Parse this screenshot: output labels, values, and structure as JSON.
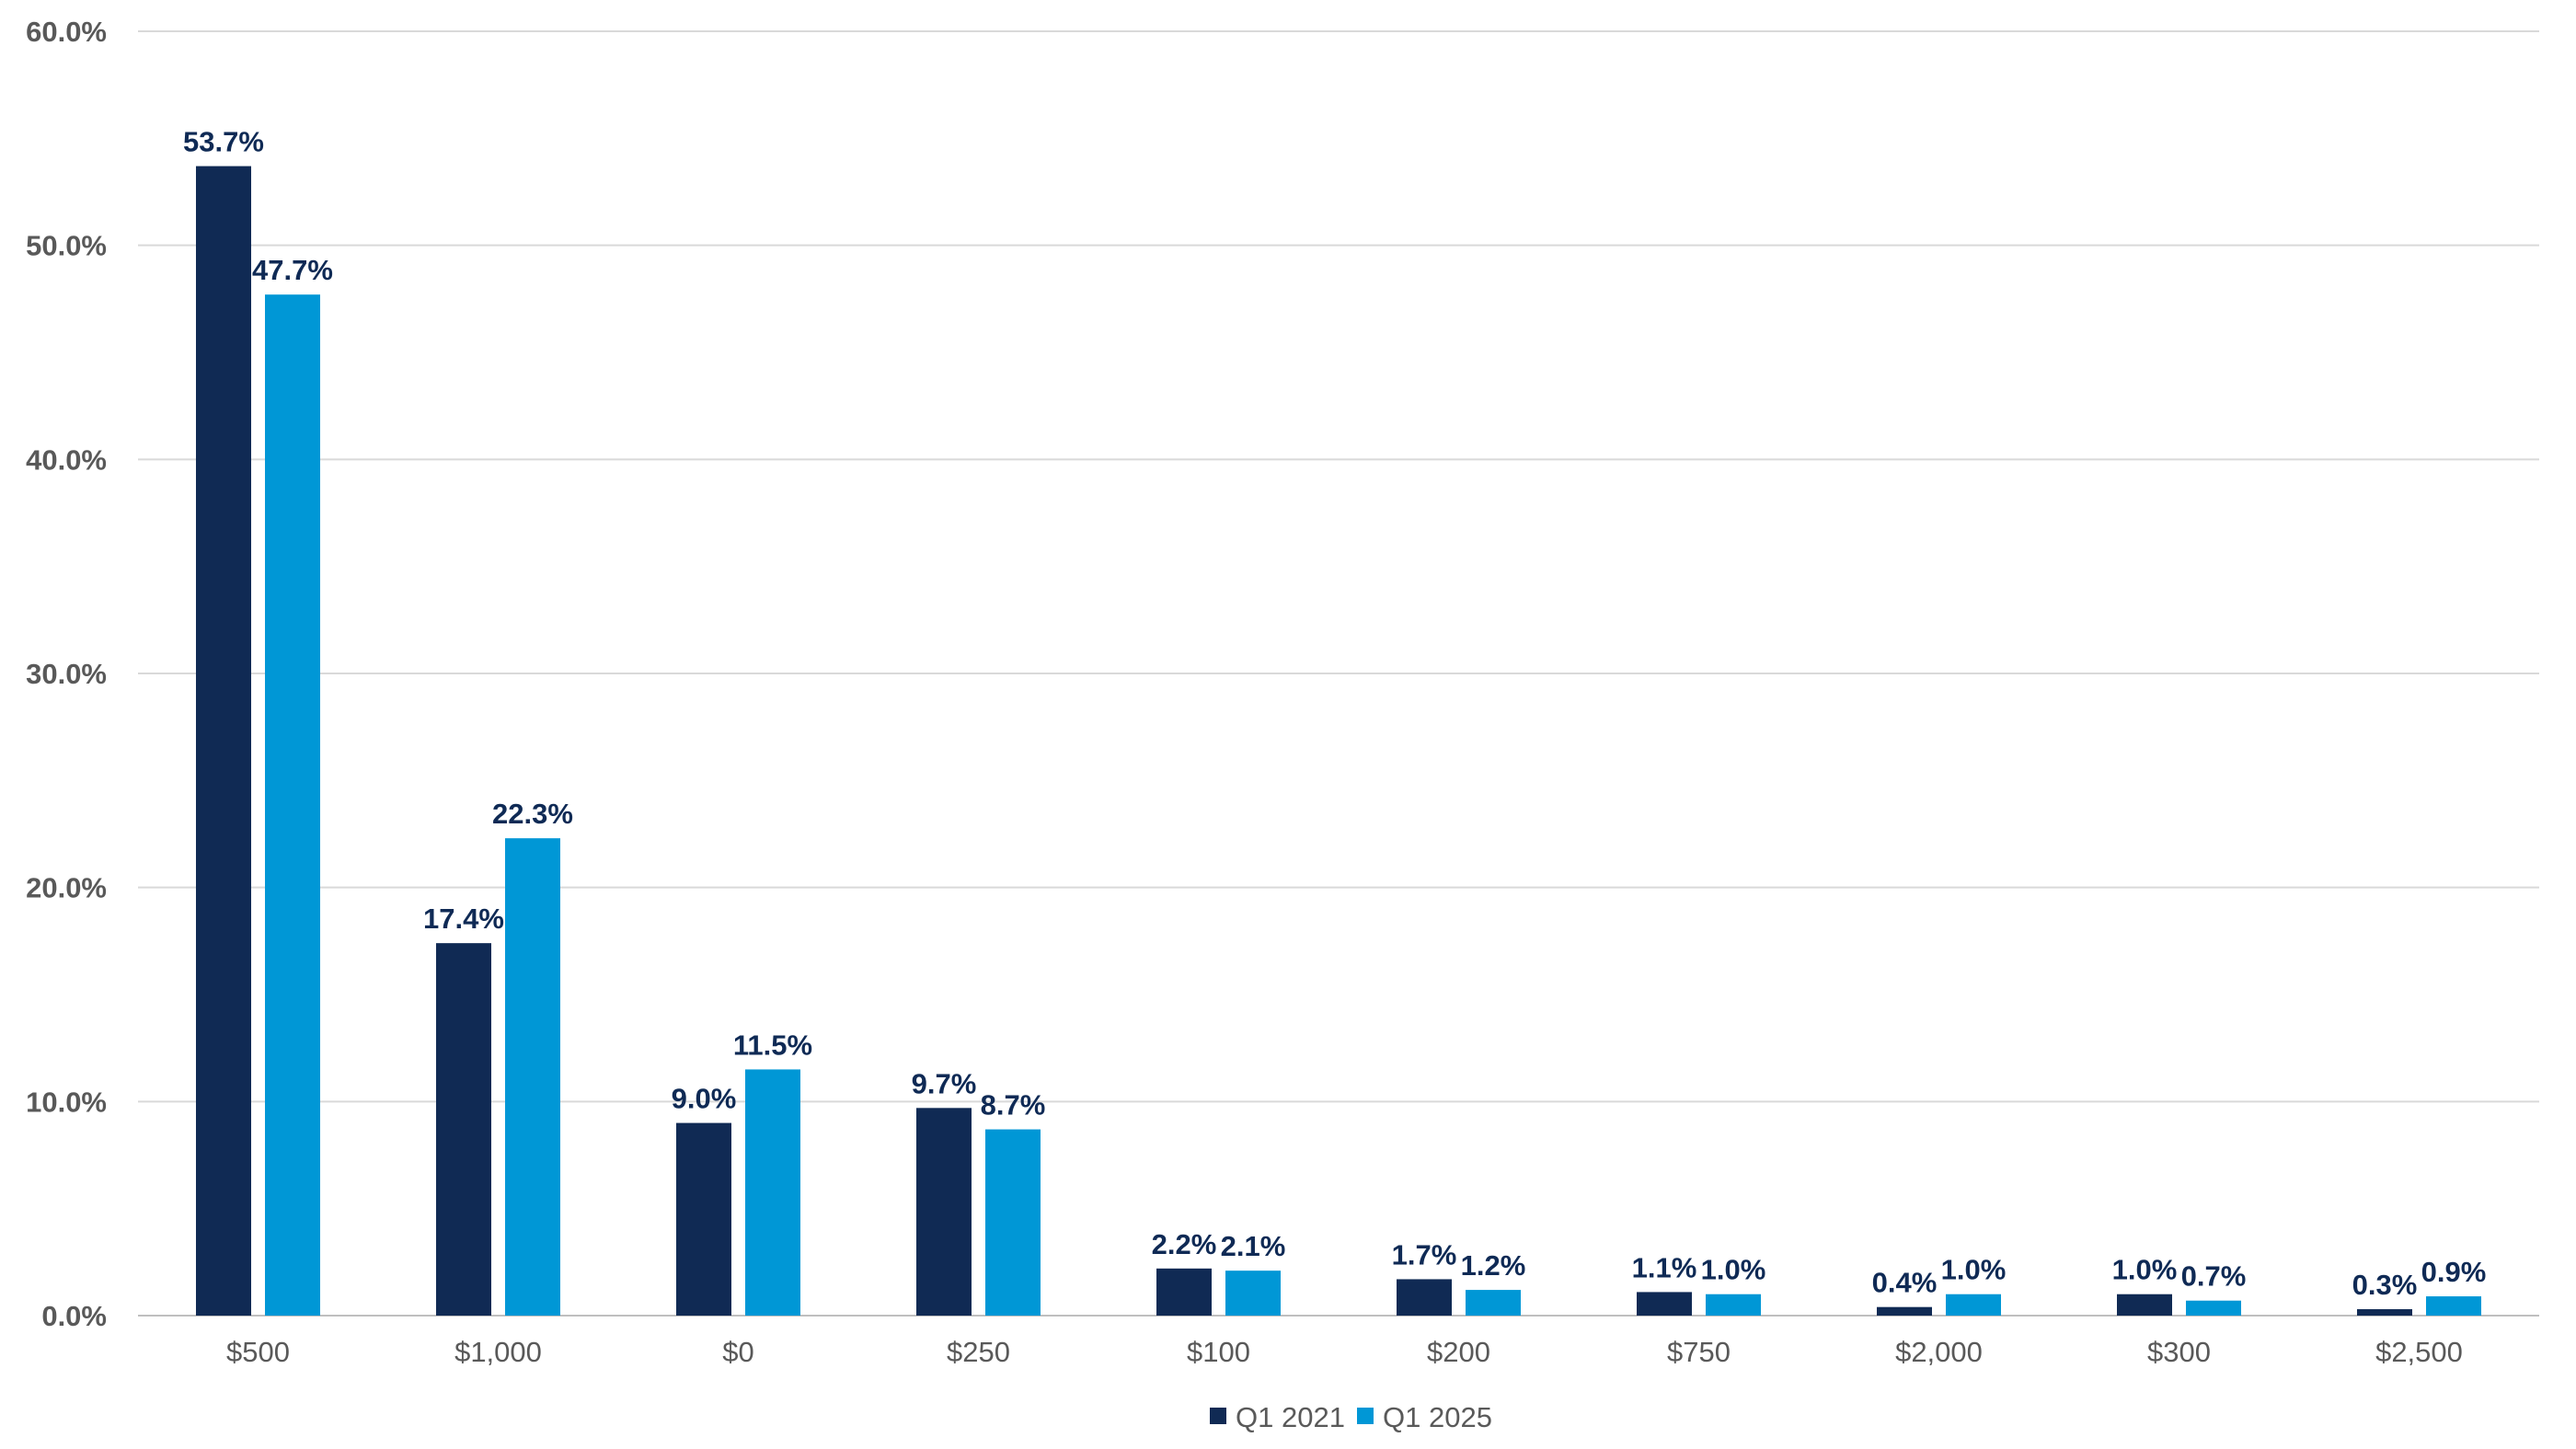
{
  "chart_data": {
    "type": "bar",
    "categories": [
      "$500",
      "$1,000",
      "$0",
      "$250",
      "$100",
      "$200",
      "$750",
      "$2,000",
      "$300",
      "$2,500"
    ],
    "series": [
      {
        "name": "Q1 2021",
        "color": "#102a54",
        "values": [
          53.7,
          17.4,
          9.0,
          9.7,
          2.2,
          1.7,
          1.1,
          0.4,
          1.0,
          0.3
        ],
        "labels": [
          "53.7%",
          "17.4%",
          "9.0%",
          "9.7%",
          "2.2%",
          "1.7%",
          "1.1%",
          "0.4%",
          "1.0%",
          "0.3%"
        ]
      },
      {
        "name": "Q1 2025",
        "color": "#0097d6",
        "values": [
          47.7,
          22.3,
          11.5,
          8.7,
          2.1,
          1.2,
          1.0,
          1.0,
          0.7,
          0.9
        ],
        "labels": [
          "47.7%",
          "22.3%",
          "11.5%",
          "8.7%",
          "2.1%",
          "1.2%",
          "1.0%",
          "1.0%",
          "0.7%",
          "0.9%"
        ]
      }
    ],
    "y_ticks": [
      "0.0%",
      "10.0%",
      "20.0%",
      "30.0%",
      "40.0%",
      "50.0%",
      "60.0%"
    ],
    "ylim": [
      0,
      60
    ],
    "title": "",
    "xlabel": "",
    "ylabel": "",
    "grid": true,
    "legend_position": "bottom-center"
  }
}
